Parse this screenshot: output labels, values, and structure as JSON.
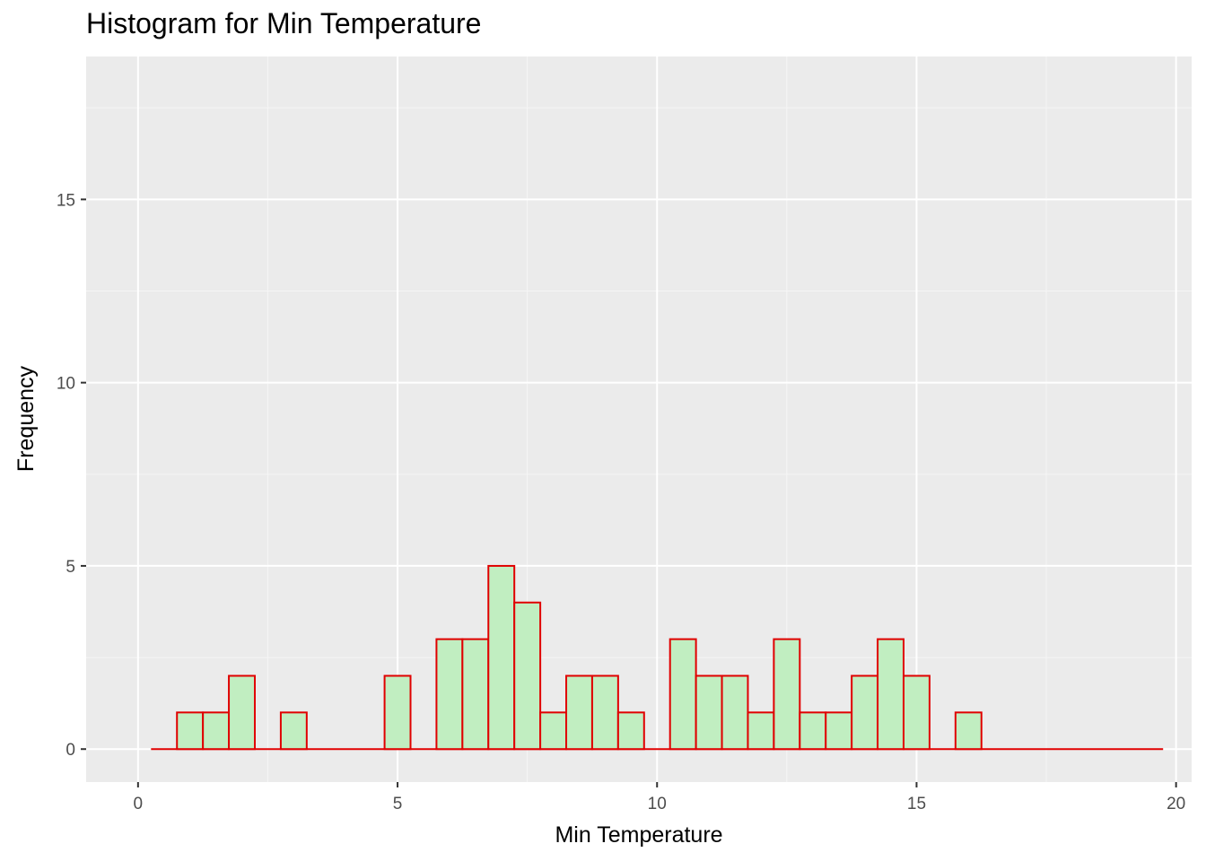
{
  "chart_data": {
    "type": "bar",
    "subtype": "histogram",
    "title": "Histogram for Min Temperature",
    "xlabel": "Min Temperature",
    "ylabel": "Frequency",
    "xlim": [
      -1,
      20.3
    ],
    "ylim": [
      -0.9,
      18.9
    ],
    "x_ticks": [
      0,
      5,
      10,
      15,
      20
    ],
    "x_tick_labels": [
      "0",
      "5",
      "10",
      "15",
      "20"
    ],
    "y_ticks": [
      0,
      5,
      10,
      15
    ],
    "y_tick_labels": [
      "0",
      "5",
      "10",
      "15"
    ],
    "grid": true,
    "legend": "none",
    "bin_width": 0.5,
    "bins_start": 0.25,
    "bins_end": 19.75,
    "bins": [
      {
        "x0": 0.75,
        "x1": 1.25,
        "count": 1
      },
      {
        "x0": 1.25,
        "x1": 1.75,
        "count": 1
      },
      {
        "x0": 1.75,
        "x1": 2.25,
        "count": 2
      },
      {
        "x0": 2.75,
        "x1": 3.25,
        "count": 1
      },
      {
        "x0": 4.75,
        "x1": 5.25,
        "count": 2
      },
      {
        "x0": 5.75,
        "x1": 6.25,
        "count": 3
      },
      {
        "x0": 6.25,
        "x1": 6.75,
        "count": 3
      },
      {
        "x0": 6.75,
        "x1": 7.25,
        "count": 5
      },
      {
        "x0": 7.25,
        "x1": 7.75,
        "count": 4
      },
      {
        "x0": 7.75,
        "x1": 8.25,
        "count": 1
      },
      {
        "x0": 8.25,
        "x1": 8.75,
        "count": 2
      },
      {
        "x0": 8.75,
        "x1": 9.25,
        "count": 2
      },
      {
        "x0": 9.25,
        "x1": 9.75,
        "count": 1
      },
      {
        "x0": 10.25,
        "x1": 10.75,
        "count": 3
      },
      {
        "x0": 10.75,
        "x1": 11.25,
        "count": 2
      },
      {
        "x0": 11.25,
        "x1": 11.75,
        "count": 2
      },
      {
        "x0": 11.75,
        "x1": 12.25,
        "count": 1
      },
      {
        "x0": 12.25,
        "x1": 12.75,
        "count": 3
      },
      {
        "x0": 12.75,
        "x1": 13.25,
        "count": 1
      },
      {
        "x0": 13.25,
        "x1": 13.75,
        "count": 1
      },
      {
        "x0": 13.75,
        "x1": 14.25,
        "count": 2
      },
      {
        "x0": 14.25,
        "x1": 14.75,
        "count": 3
      },
      {
        "x0": 14.75,
        "x1": 15.25,
        "count": 2
      },
      {
        "x0": 15.75,
        "x1": 16.25,
        "count": 1
      }
    ],
    "colors": {
      "bar_fill": "#c1eec1",
      "bar_outline": "#e00000",
      "panel_background": "#ebebeb",
      "grid_major": "#ffffff",
      "grid_minor": "#f5f5f5"
    }
  }
}
